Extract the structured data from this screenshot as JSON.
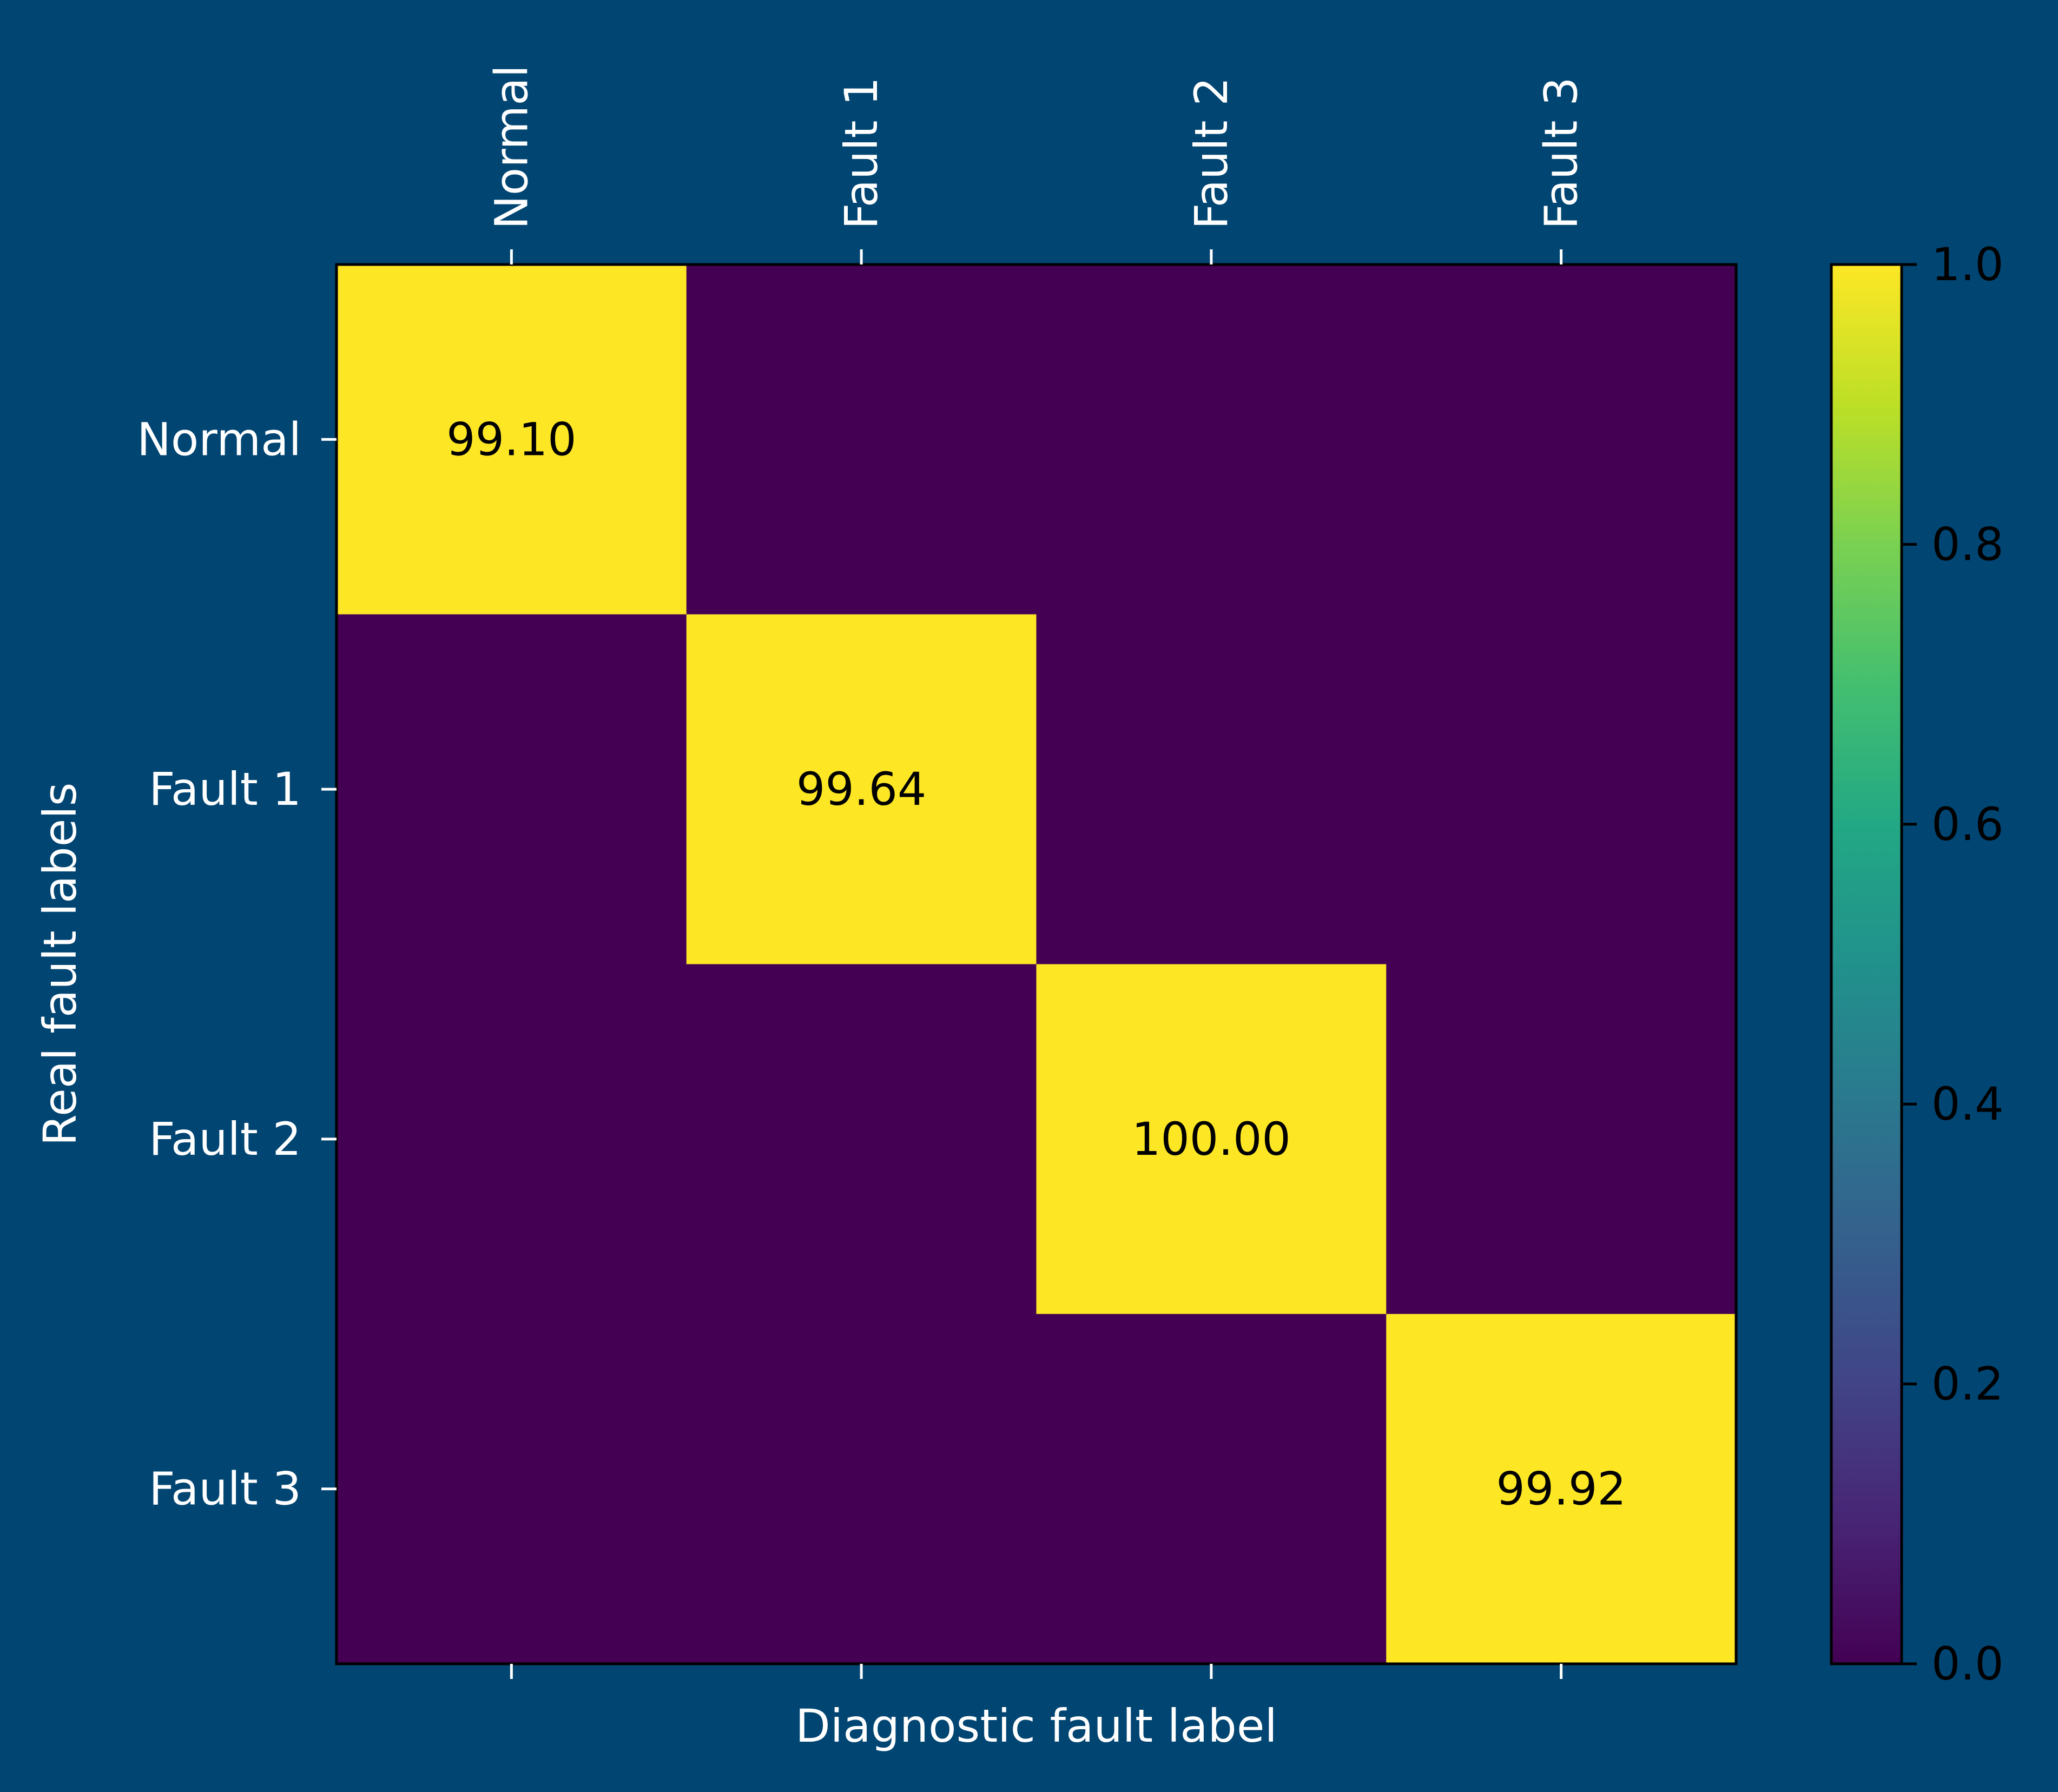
{
  "chart_data": {
    "type": "heatmap",
    "title": "",
    "xlabel": "Diagnostic fault label",
    "ylabel": "Real fault labels",
    "x_categories": [
      "Normal",
      "Fault 1",
      "Fault 2",
      "Fault 3"
    ],
    "y_categories": [
      "Normal",
      "Fault 1",
      "Fault 2",
      "Fault 3"
    ],
    "values": [
      [
        1.0,
        0.0,
        0.0,
        0.0
      ],
      [
        0.0,
        1.0,
        0.0,
        0.0
      ],
      [
        0.0,
        0.0,
        1.0,
        0.0
      ],
      [
        0.0,
        0.0,
        0.0,
        1.0
      ]
    ],
    "annotations": [
      {
        "row": 0,
        "col": 0,
        "text": "99.10"
      },
      {
        "row": 1,
        "col": 1,
        "text": "99.64"
      },
      {
        "row": 2,
        "col": 2,
        "text": "100.00"
      },
      {
        "row": 3,
        "col": 3,
        "text": "99.92"
      }
    ],
    "colorbar": {
      "range": [
        0.0,
        1.0
      ],
      "ticks": [
        "0.0",
        "0.2",
        "0.4",
        "0.6",
        "0.8",
        "1.0"
      ],
      "colormap": "viridis"
    },
    "x_tick_position": "top",
    "grid": false
  },
  "colors": {
    "background": "#014572",
    "low": "#440154",
    "high": "#fde725"
  }
}
